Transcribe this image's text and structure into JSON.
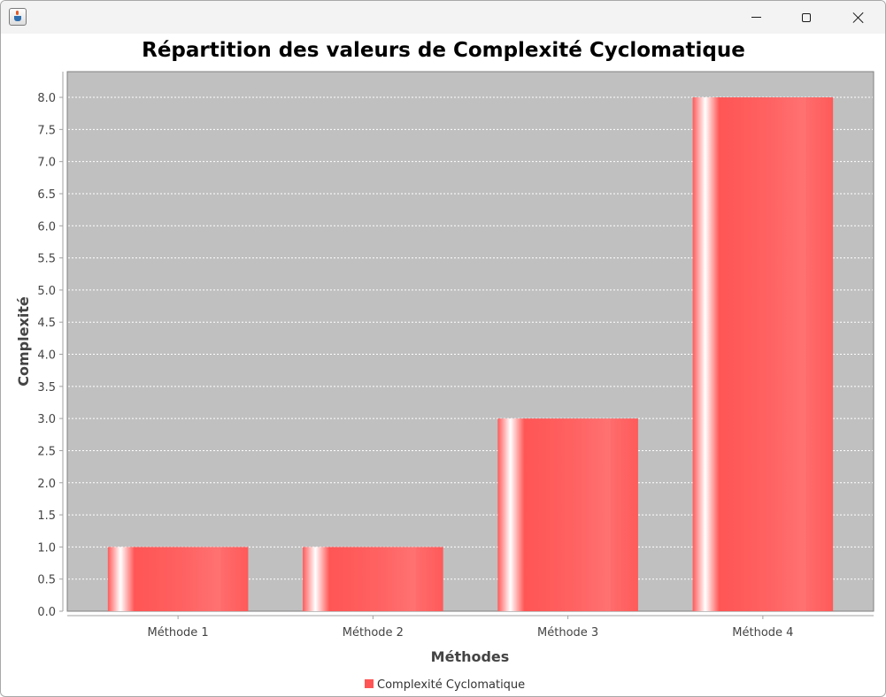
{
  "window": {
    "icon": "java-cup-icon",
    "controls": [
      "minimize-icon",
      "maximize-icon",
      "close-icon"
    ]
  },
  "chart_data": {
    "type": "bar",
    "title": "Répartition des valeurs de Complexité Cyclomatique",
    "xlabel": "Méthodes",
    "ylabel": "Complexité",
    "categories": [
      "Méthode 1",
      "Méthode 2",
      "Méthode 3",
      "Méthode 4"
    ],
    "series": [
      {
        "name": "Complexité Cyclomatique",
        "values": [
          1.0,
          1.0,
          3.0,
          8.0
        ]
      }
    ],
    "ylim": [
      0,
      8.4
    ],
    "yticks": [
      "0.0",
      "0.5",
      "1.0",
      "1.5",
      "2.0",
      "2.5",
      "3.0",
      "3.5",
      "4.0",
      "4.5",
      "5.0",
      "5.5",
      "6.0",
      "6.5",
      "7.0",
      "7.5",
      "8.0"
    ],
    "grid": true,
    "legend": "bottom-center",
    "colors": {
      "plot_background": "#c0c0c0",
      "bar": "#ff5555",
      "grid": "#ffffff"
    }
  }
}
